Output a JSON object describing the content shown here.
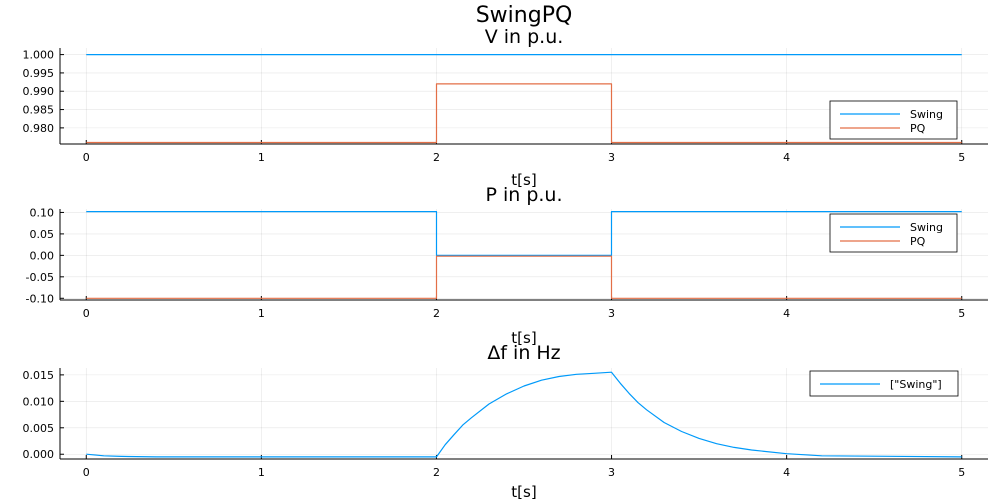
{
  "title": "SwingPQ",
  "chart_data": [
    {
      "type": "line",
      "title": "V in p.u.",
      "xlabel": "t[s]",
      "ylabel": "",
      "xlim": [
        -0.15,
        5.15
      ],
      "ylim": [
        0.9756,
        1.0018
      ],
      "xticks": [
        0,
        1,
        2,
        3,
        4,
        5
      ],
      "xtick_labels": [
        "0",
        "1",
        "2",
        "3",
        "4",
        "5"
      ],
      "yticks": [
        0.98,
        0.985,
        0.99,
        0.995,
        1.0
      ],
      "ytick_labels": [
        "0.980",
        "0.985",
        "0.990",
        "0.995",
        "1.000"
      ],
      "grid": true,
      "legend": "bottom-right",
      "series": [
        {
          "name": "Swing",
          "color": "#009AFA",
          "x": [
            0,
            5
          ],
          "y": [
            1.0,
            1.0
          ]
        },
        {
          "name": "PQ",
          "color": "#E36F47",
          "x": [
            0,
            2,
            2,
            3,
            3,
            5
          ],
          "y": [
            0.976,
            0.976,
            0.992,
            0.992,
            0.976,
            0.976
          ]
        }
      ]
    },
    {
      "type": "line",
      "title": "P in p.u.",
      "xlabel": "t[s]",
      "ylabel": "",
      "xlim": [
        -0.15,
        5.15
      ],
      "ylim": [
        -0.104,
        0.108
      ],
      "xticks": [
        0,
        1,
        2,
        3,
        4,
        5
      ],
      "xtick_labels": [
        "0",
        "1",
        "2",
        "3",
        "4",
        "5"
      ],
      "yticks": [
        -0.1,
        -0.05,
        0.0,
        0.05,
        0.1
      ],
      "ytick_labels": [
        "-0.10",
        "-0.05",
        "0.00",
        "0.05",
        "0.10"
      ],
      "grid": true,
      "legend": "top-right",
      "series": [
        {
          "name": "Swing",
          "color": "#009AFA",
          "x": [
            0,
            2,
            2,
            3,
            3,
            5
          ],
          "y": [
            0.102,
            0.102,
            0.0,
            0.0,
            0.102,
            0.102
          ]
        },
        {
          "name": "PQ",
          "color": "#E36F47",
          "x": [
            0,
            2,
            2,
            3,
            3,
            5
          ],
          "y": [
            -0.1,
            -0.1,
            -0.002,
            -0.002,
            -0.1,
            -0.1
          ]
        }
      ]
    },
    {
      "type": "line",
      "title": "Δf in Hz",
      "xlabel": "t[s]",
      "ylabel": "",
      "xlim": [
        -0.15,
        5.15
      ],
      "ylim": [
        -0.0009,
        0.0163
      ],
      "xticks": [
        0,
        1,
        2,
        3,
        4,
        5
      ],
      "xtick_labels": [
        "0",
        "1",
        "2",
        "3",
        "4",
        "5"
      ],
      "yticks": [
        0.0,
        0.005,
        0.01,
        0.015
      ],
      "ytick_labels": [
        "0.000",
        "0.005",
        "0.010",
        "0.015"
      ],
      "grid": true,
      "legend": "top-right",
      "series": [
        {
          "name": "[\"Swing\"]",
          "color": "#009AFA",
          "x": [
            0,
            0.1,
            0.2,
            0.4,
            0.6,
            1.0,
            1.5,
            2.0,
            2.05,
            2.1,
            2.15,
            2.2,
            2.3,
            2.4,
            2.5,
            2.6,
            2.7,
            2.8,
            2.9,
            3.0,
            3.05,
            3.1,
            3.15,
            3.2,
            3.3,
            3.4,
            3.5,
            3.6,
            3.7,
            3.8,
            4.0,
            4.2,
            5.0
          ],
          "y": [
            0.0,
            -0.0003,
            -0.0004,
            -0.0005,
            -0.0005,
            -0.0005,
            -0.0005,
            -0.0005,
            0.0018,
            0.0037,
            0.0055,
            0.0069,
            0.0095,
            0.0114,
            0.0129,
            0.014,
            0.0147,
            0.0151,
            0.0153,
            0.0155,
            0.0134,
            0.0115,
            0.0098,
            0.0084,
            0.006,
            0.0043,
            0.003,
            0.002,
            0.0013,
            0.0008,
            0.0001,
            -0.0003,
            -0.0005
          ]
        }
      ]
    }
  ]
}
